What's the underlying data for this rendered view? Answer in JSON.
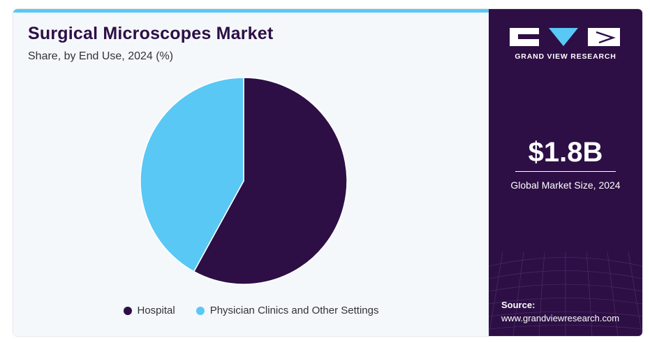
{
  "chart_data": {
    "type": "pie",
    "title": "Surgical Microscopes Market",
    "subtitle": "Share, by End Use, 2024 (%)",
    "categories": [
      "Hospital",
      "Physician Clinics and Other Settings"
    ],
    "values": [
      58,
      42
    ],
    "colors": [
      "#2e0f45",
      "#5ac8f5"
    ],
    "legend_placement": "bottom"
  },
  "sidebar": {
    "brand": "GRAND VIEW RESEARCH",
    "market_value": "$1.8B",
    "market_label": "Global Market Size, 2024",
    "source_label": "Source:",
    "source_url": "www.grandviewresearch.com"
  },
  "colors": {
    "panel": "#2e0f45",
    "accent": "#5ac8f5",
    "background": "#f4f8fb"
  }
}
